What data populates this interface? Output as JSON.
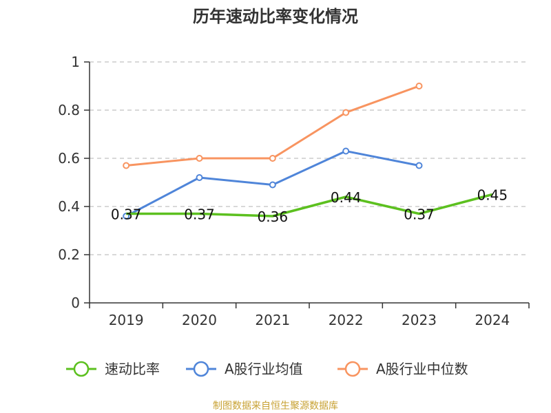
{
  "chart_data": {
    "type": "line",
    "title": "历年速动比率变化情况",
    "categories": [
      "2019",
      "2020",
      "2021",
      "2022",
      "2023",
      "2024"
    ],
    "y_ticks": [
      "0",
      "0.2",
      "0.4",
      "0.6",
      "0.8",
      "1"
    ],
    "ylim": [
      0,
      1
    ],
    "grid": "horizontal-dashed",
    "legend_position": "bottom",
    "series": [
      {
        "name": "速动比率",
        "color": "#5cc01f",
        "values": [
          0.37,
          0.37,
          0.36,
          0.44,
          0.37,
          0.45
        ],
        "labels": [
          "0.37",
          "0.37",
          "0.36",
          "0.44",
          "0.37",
          "0.45"
        ]
      },
      {
        "name": "A股行业均值",
        "color": "#4f85d9",
        "values": [
          0.36,
          0.52,
          0.49,
          0.63,
          0.57,
          null
        ]
      },
      {
        "name": "A股行业中位数",
        "color": "#f89460",
        "values": [
          0.57,
          0.6,
          0.6,
          0.79,
          0.9,
          null
        ]
      }
    ]
  },
  "source": "制图数据来自恒生聚源数据库"
}
